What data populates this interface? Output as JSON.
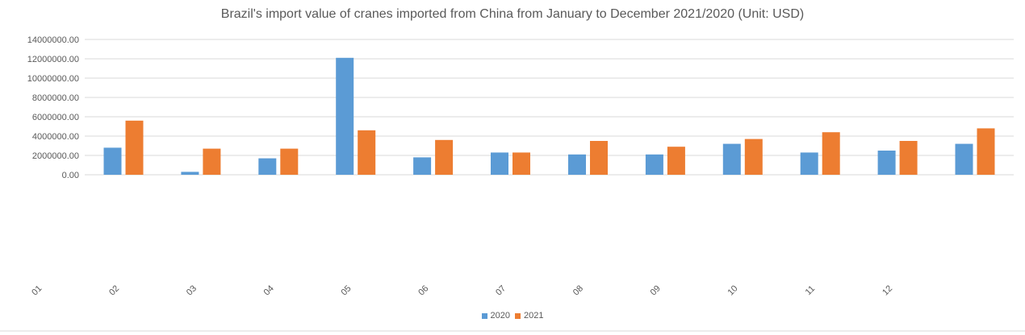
{
  "chart_data": {
    "type": "bar",
    "title": "Brazil's import value of cranes imported from China from January to December 2021/2020 (Unit: USD)",
    "xlabel": "",
    "ylabel": "",
    "ylim": [
      0,
      14000000
    ],
    "y_ticks": [
      "0.00",
      "2000000.00",
      "4000000.00",
      "6000000.00",
      "8000000.00",
      "10000000.00",
      "12000000.00",
      "14000000.00"
    ],
    "x_tick_labels": [
      "01",
      "02",
      "03",
      "04",
      "05",
      "06",
      "07",
      "08",
      "09",
      "10",
      "11",
      "12"
    ],
    "series": [
      {
        "name": "2020",
        "color": "#5b9bd5",
        "values": [
          2800000,
          300000,
          1700000,
          12100000,
          1800000,
          2300000,
          2100000,
          2100000,
          3200000,
          2300000,
          2500000,
          3200000
        ]
      },
      {
        "name": "2021",
        "color": "#ed7d31",
        "values": [
          5600000,
          2700000,
          2700000,
          4600000,
          3600000,
          2300000,
          3500000,
          2900000,
          3700000,
          4400000,
          3500000,
          4800000
        ]
      }
    ],
    "grid": true,
    "legend": "bottom"
  }
}
